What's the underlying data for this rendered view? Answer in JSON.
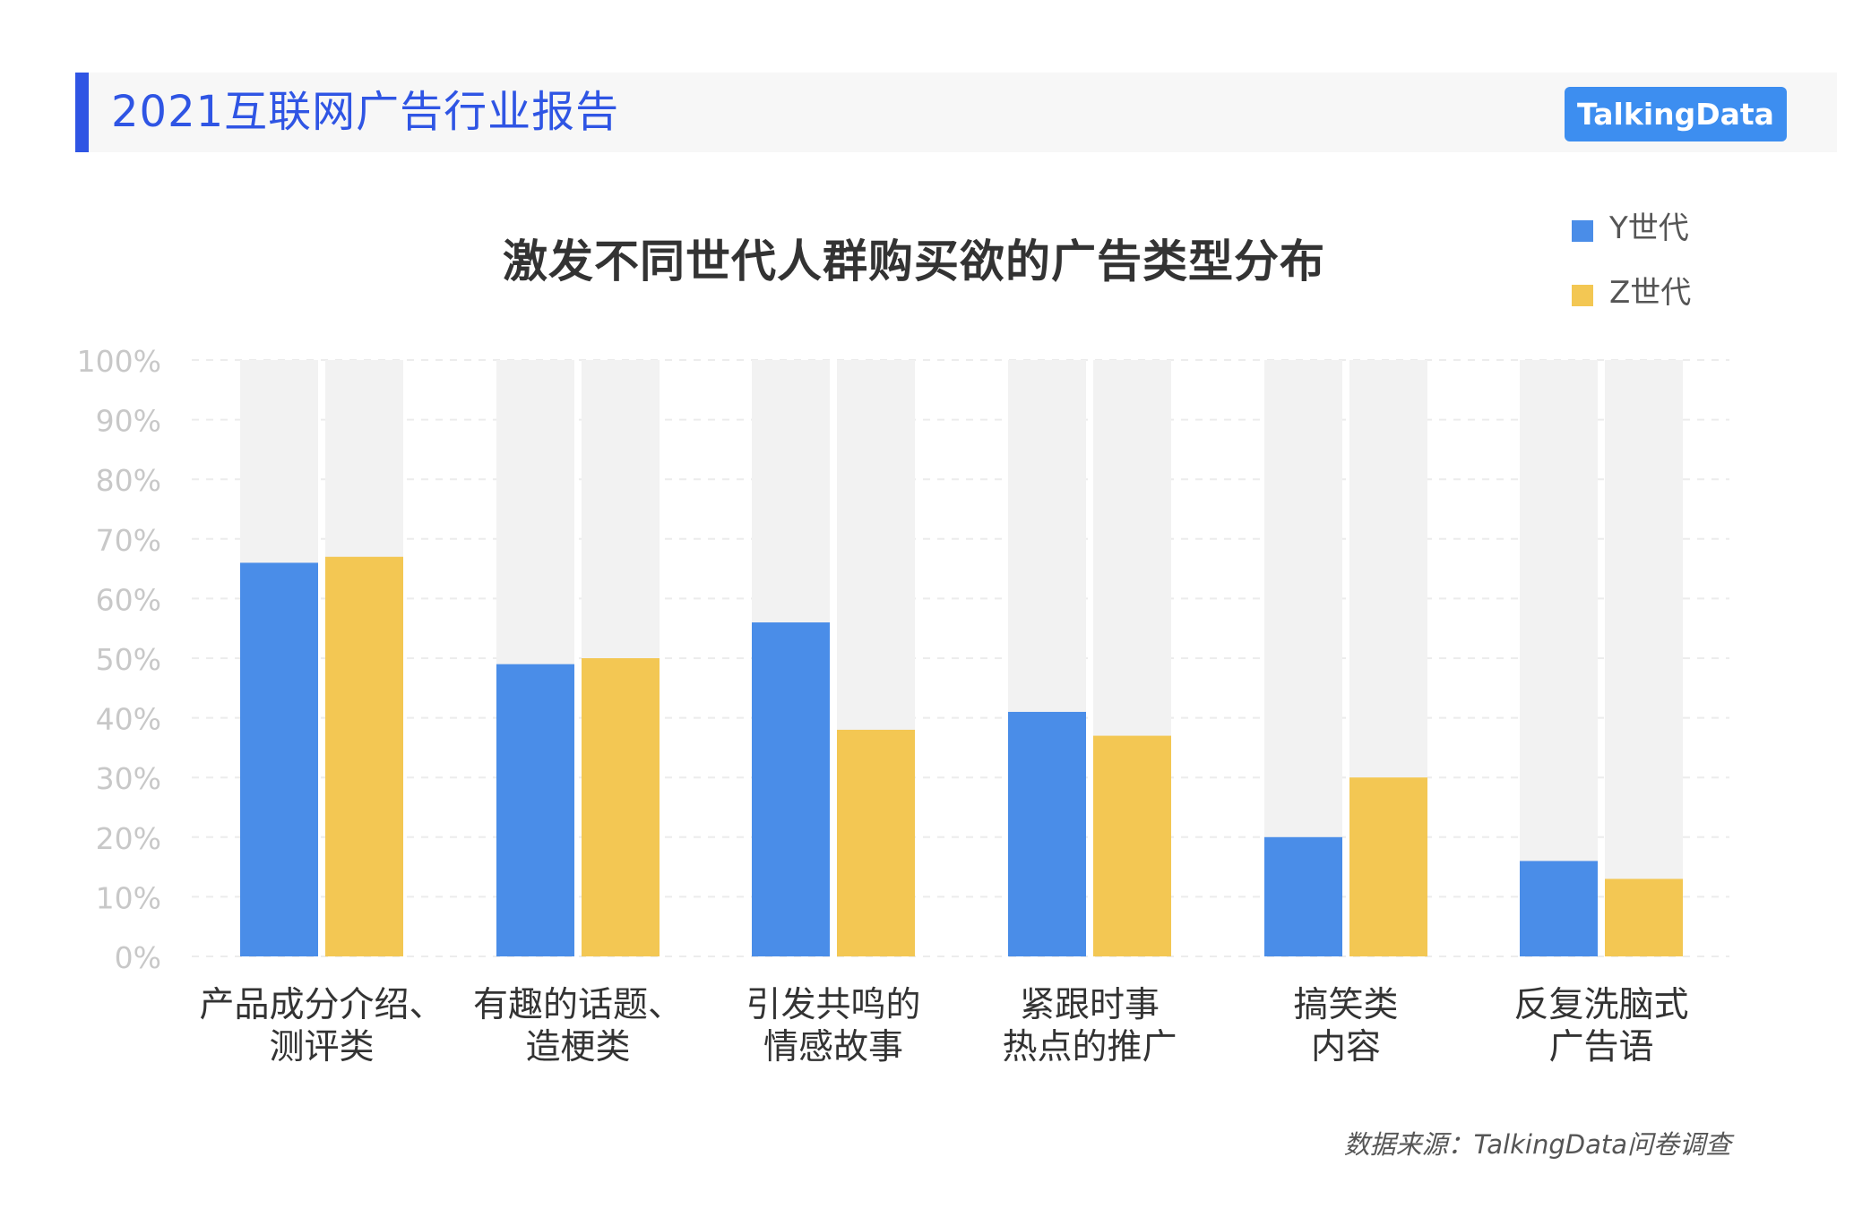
{
  "header": {
    "report_title": "2021互联网广告行业报告",
    "brand": "TalkingData"
  },
  "colors": {
    "accent": "#2f55e4",
    "y_generation": "#4a8de8",
    "z_generation": "#f3c753",
    "bar_background": "#f2f2f2",
    "axis_text": "#c8c8c8",
    "category_text": "#333333"
  },
  "chart_data": {
    "type": "bar",
    "title": "激发不同世代人群购买欲的广告类型分布",
    "categories": [
      [
        "产品成分介绍、",
        "测评类"
      ],
      [
        "有趣的话题、",
        "造梗类"
      ],
      [
        "引发共鸣的",
        "情感故事"
      ],
      [
        "紧跟时事",
        "热点的推广"
      ],
      [
        "搞笑类",
        "内容"
      ],
      [
        "反复洗脑式",
        "广告语"
      ]
    ],
    "series": [
      {
        "name": "Y世代",
        "values": [
          66,
          49,
          56,
          41,
          20,
          16
        ]
      },
      {
        "name": "Z世代",
        "values": [
          67,
          50,
          38,
          37,
          30,
          13
        ]
      }
    ],
    "ylim": [
      0,
      100
    ],
    "yticks": [
      "0%",
      "10%",
      "20%",
      "30%",
      "40%",
      "50%",
      "60%",
      "70%",
      "80%",
      "90%",
      "100%"
    ],
    "grid": true,
    "legend": "top-right",
    "xlabel": "",
    "ylabel": ""
  },
  "footer": {
    "source": "数据来源：TalkingData问卷调查"
  }
}
